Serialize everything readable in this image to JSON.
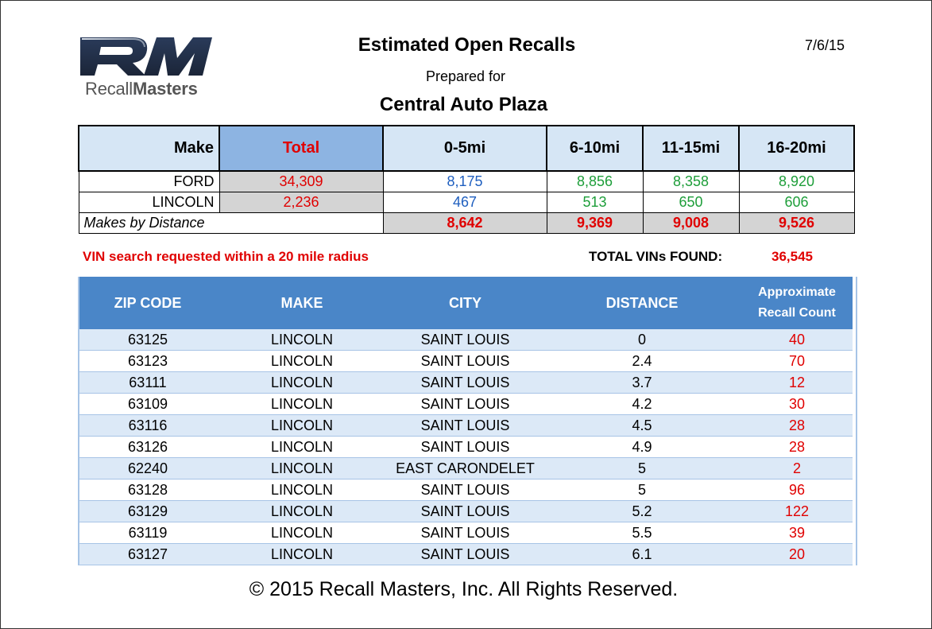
{
  "logo": {
    "mark": "RM",
    "brand_light": "Recall",
    "brand_bold": "Masters"
  },
  "header": {
    "title": "Estimated Open Recalls",
    "date": "7/6/15",
    "prepared_for": "Prepared for",
    "dealer": "Central Auto Plaza"
  },
  "summary": {
    "columns": [
      "Make",
      "Total",
      "0-5mi",
      "6-10mi",
      "11-15mi",
      "16-20mi"
    ],
    "rows": [
      {
        "make": "FORD",
        "total": "34,309",
        "d0_5": "8,175",
        "d6_10": "8,856",
        "d11_15": "8,358",
        "d16_20": "8,920"
      },
      {
        "make": "LINCOLN",
        "total": "2,236",
        "d0_5": "467",
        "d6_10": "513",
        "d11_15": "650",
        "d16_20": "606"
      }
    ],
    "by_distance": {
      "label": "Makes by Distance",
      "d0_5": "8,642",
      "d6_10": "9,369",
      "d11_15": "9,008",
      "d16_20": "9,526"
    }
  },
  "vin_note": "VIN search requested within a 20 mile radius",
  "total_vins": {
    "label": "TOTAL VINs FOUND:",
    "value": "36,545"
  },
  "detail": {
    "columns": [
      "ZIP CODE",
      "MAKE",
      "CITY",
      "DISTANCE",
      "Approximate Recall Count"
    ],
    "rows": [
      {
        "zip": "63125",
        "make": "LINCOLN",
        "city": "SAINT LOUIS",
        "distance": "0",
        "count": "40"
      },
      {
        "zip": "63123",
        "make": "LINCOLN",
        "city": "SAINT LOUIS",
        "distance": "2.4",
        "count": "70"
      },
      {
        "zip": "63111",
        "make": "LINCOLN",
        "city": "SAINT LOUIS",
        "distance": "3.7",
        "count": "12"
      },
      {
        "zip": "63109",
        "make": "LINCOLN",
        "city": "SAINT LOUIS",
        "distance": "4.2",
        "count": "30"
      },
      {
        "zip": "63116",
        "make": "LINCOLN",
        "city": "SAINT LOUIS",
        "distance": "4.5",
        "count": "28"
      },
      {
        "zip": "63126",
        "make": "LINCOLN",
        "city": "SAINT LOUIS",
        "distance": "4.9",
        "count": "28"
      },
      {
        "zip": "62240",
        "make": "LINCOLN",
        "city": "EAST CARONDELET",
        "distance": "5",
        "count": "2"
      },
      {
        "zip": "63128",
        "make": "LINCOLN",
        "city": "SAINT LOUIS",
        "distance": "5",
        "count": "96"
      },
      {
        "zip": "63129",
        "make": "LINCOLN",
        "city": "SAINT LOUIS",
        "distance": "5.2",
        "count": "122"
      },
      {
        "zip": "63119",
        "make": "LINCOLN",
        "city": "SAINT LOUIS",
        "distance": "5.5",
        "count": "39"
      },
      {
        "zip": "63127",
        "make": "LINCOLN",
        "city": "SAINT LOUIS",
        "distance": "6.1",
        "count": "20"
      }
    ]
  },
  "footer": "© 2015 Recall Masters, Inc. All Rights Reserved."
}
